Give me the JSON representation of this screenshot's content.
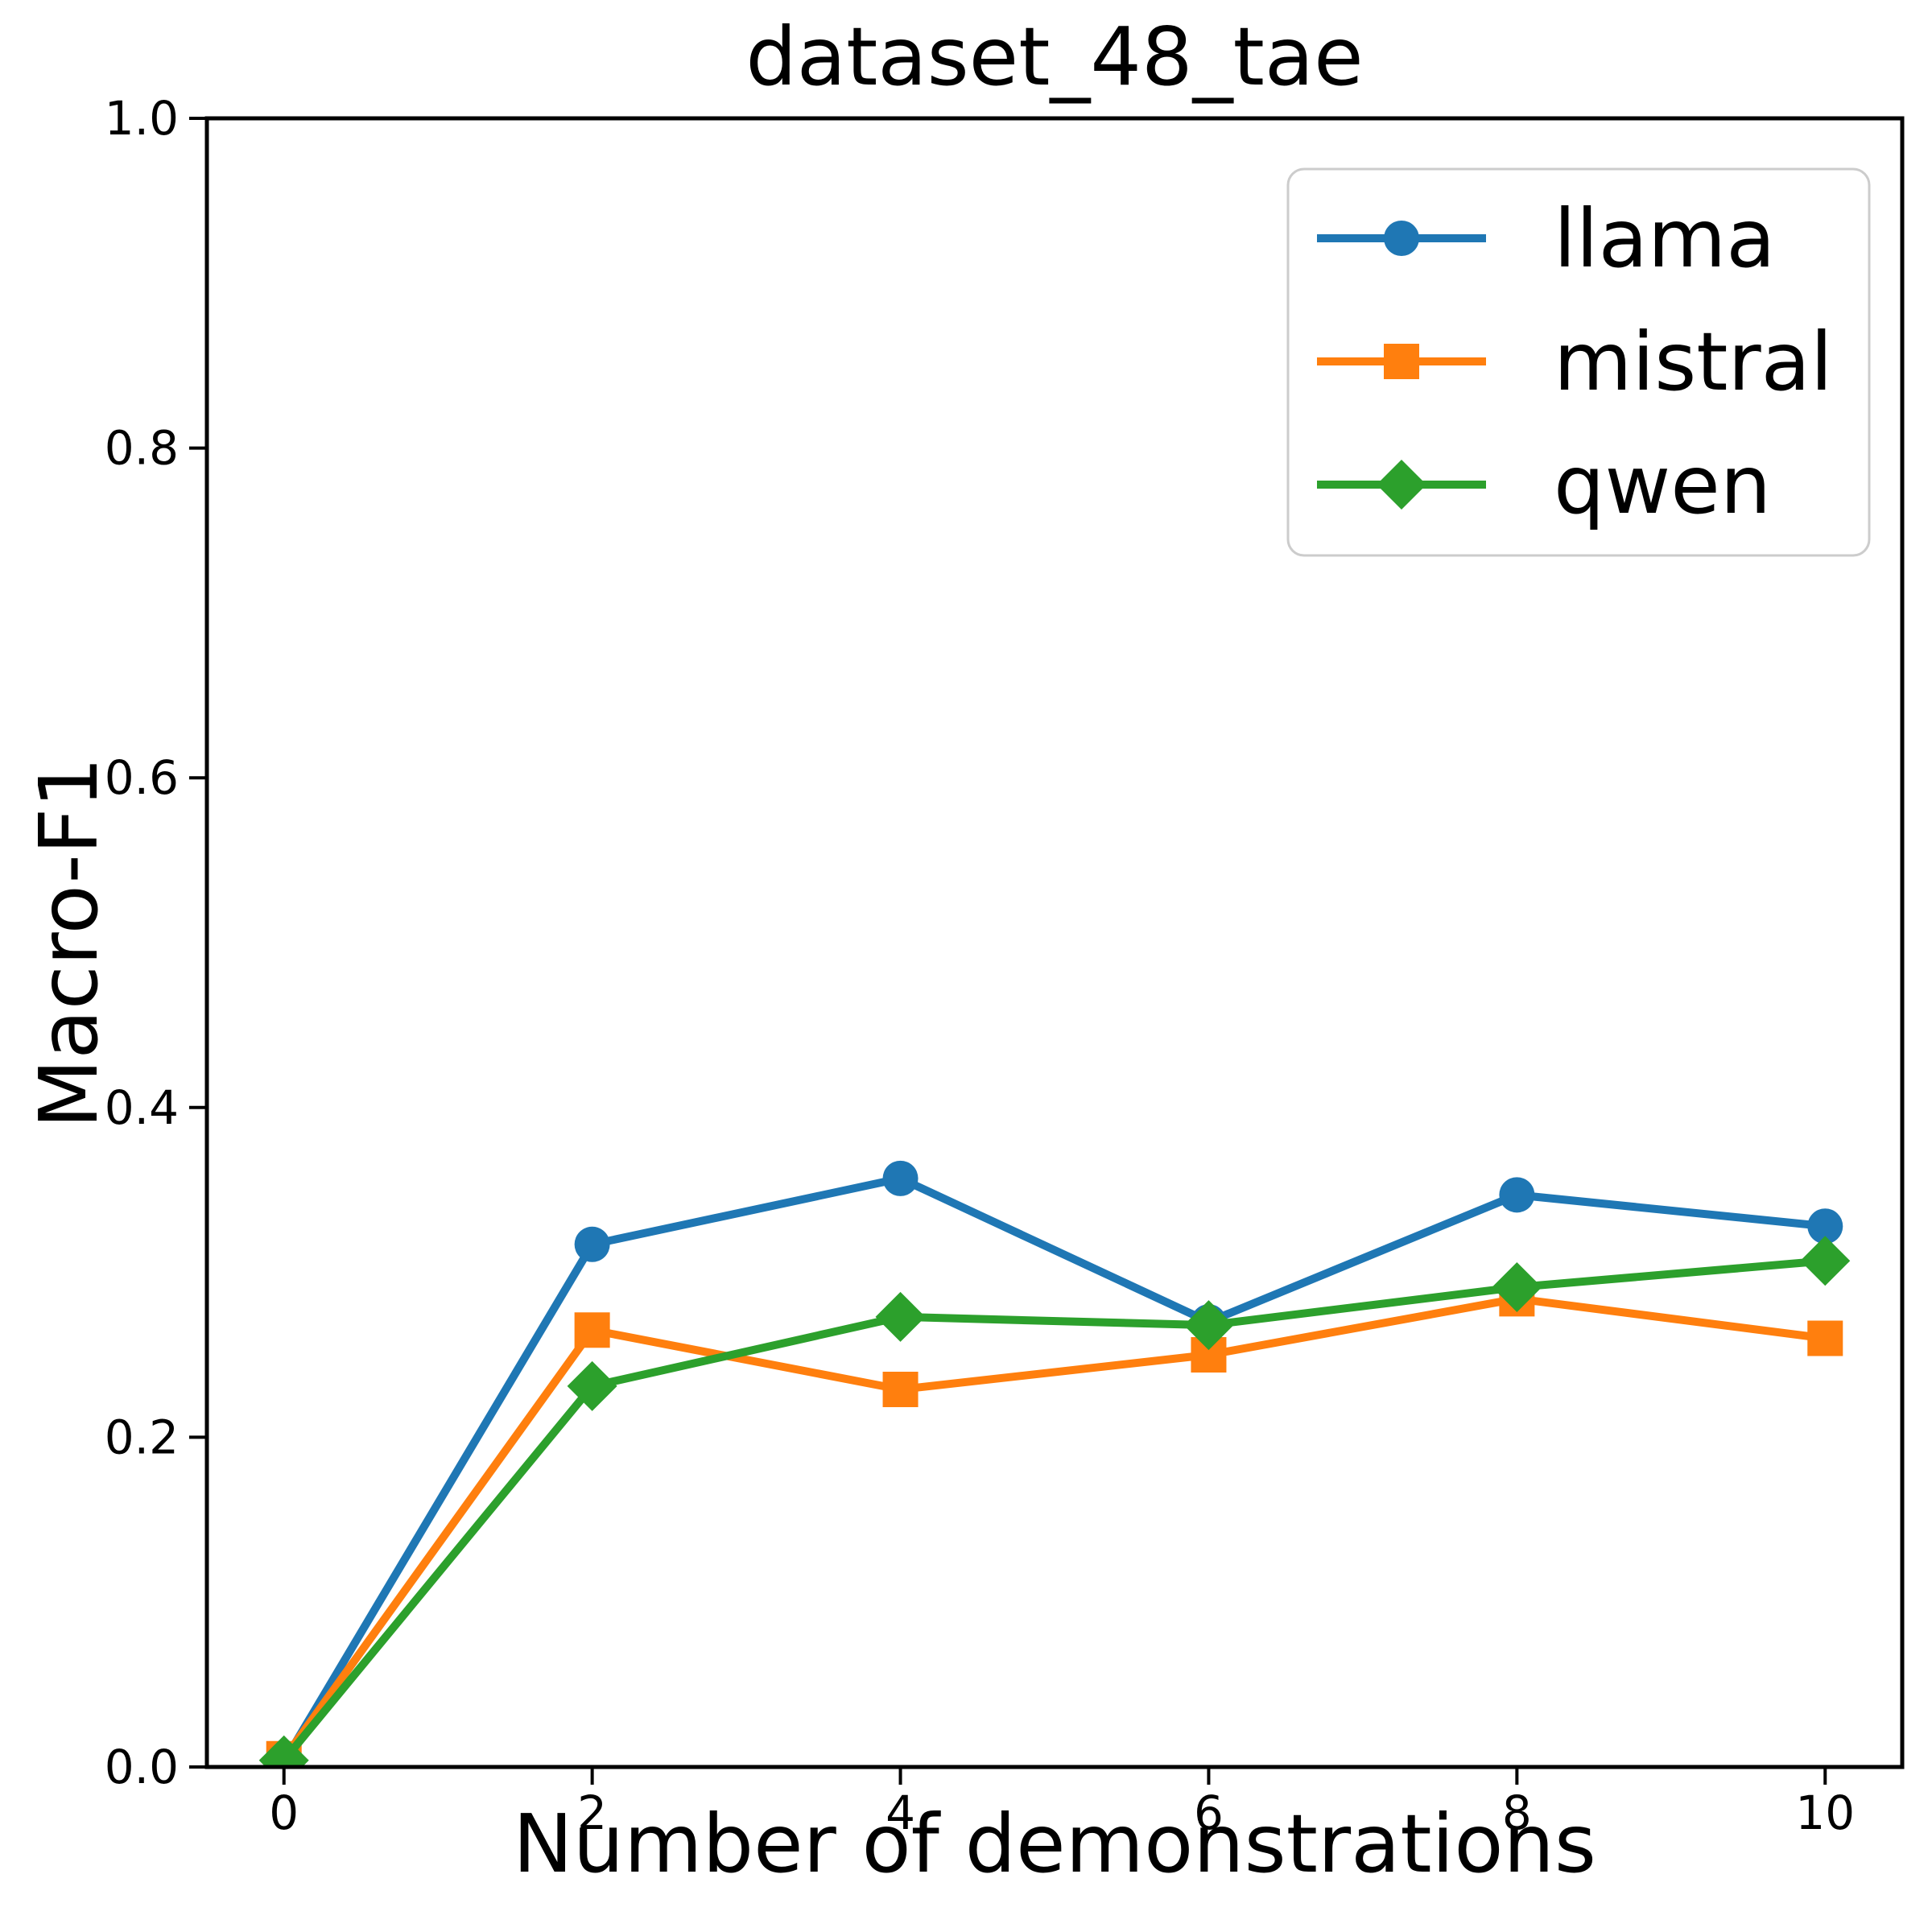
{
  "chart_data": {
    "type": "line",
    "title": "dataset_48_tae",
    "xlabel": "Number of demonstrations",
    "ylabel": "Macro-F1",
    "x": [
      0,
      2,
      4,
      6,
      8,
      10
    ],
    "x_tick_labels": [
      "0",
      "2",
      "4",
      "6",
      "8",
      "10"
    ],
    "y_ticks": [
      0.0,
      0.2,
      0.4,
      0.6,
      0.8,
      1.0
    ],
    "y_tick_labels": [
      "0.0",
      "0.2",
      "0.4",
      "0.6",
      "0.8",
      "1.0"
    ],
    "xlim": [
      -0.5,
      10.5
    ],
    "ylim": [
      0.0,
      1.0
    ],
    "grid": false,
    "legend_position": "upper right",
    "series": [
      {
        "name": "llama",
        "color": "#1f77b4",
        "marker": "circle",
        "values": [
          0.003,
          0.317,
          0.357,
          0.27,
          0.347,
          0.328
        ]
      },
      {
        "name": "mistral",
        "color": "#ff7f0e",
        "marker": "square",
        "values": [
          0.005,
          0.265,
          0.229,
          0.25,
          0.284,
          0.26
        ]
      },
      {
        "name": "qwen",
        "color": "#2ca02c",
        "marker": "diamond",
        "values": [
          0.004,
          0.231,
          0.273,
          0.268,
          0.291,
          0.307
        ]
      }
    ]
  }
}
